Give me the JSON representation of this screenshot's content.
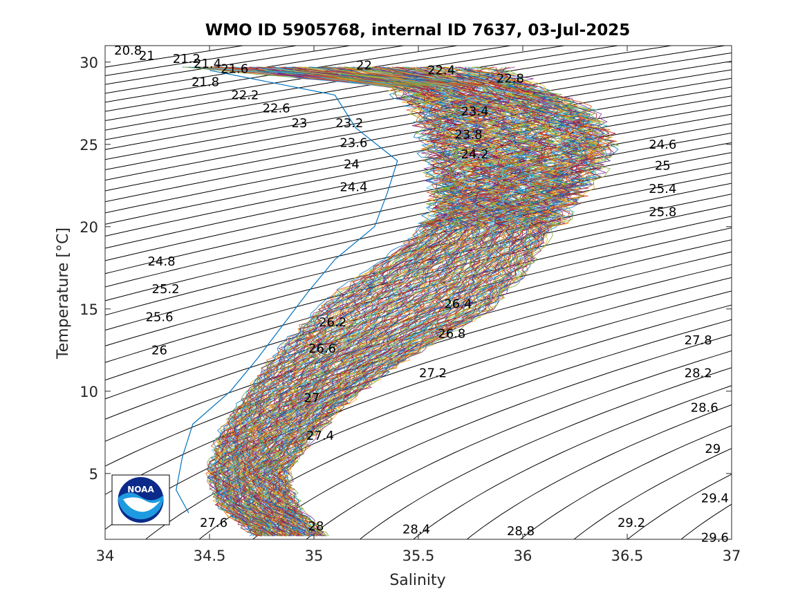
{
  "chart_data": {
    "type": "line",
    "title": "WMO ID 5905768, internal ID 7637, 03-Jul-2025",
    "xlabel": "Salinity",
    "ylabel": "Temperature [°C]",
    "xlim": [
      34,
      37
    ],
    "ylim": [
      1,
      31
    ],
    "xticks": [
      "34",
      "34.5",
      "35",
      "35.5",
      "36",
      "36.5",
      "37"
    ],
    "yticks": [
      "5",
      "10",
      "15",
      "20",
      "25",
      "30"
    ],
    "grid": false,
    "isopycnal_labels": [
      {
        "text": "20.8",
        "s": 34.11,
        "t": 30.7
      },
      {
        "text": "21",
        "s": 34.2,
        "t": 30.4
      },
      {
        "text": "21.2",
        "s": 34.39,
        "t": 30.2
      },
      {
        "text": "21.4",
        "s": 34.49,
        "t": 29.9
      },
      {
        "text": "21.6",
        "s": 34.62,
        "t": 29.6
      },
      {
        "text": "22",
        "s": 35.24,
        "t": 29.8
      },
      {
        "text": "22.4",
        "s": 35.61,
        "t": 29.5
      },
      {
        "text": "22.8",
        "s": 35.94,
        "t": 29.0
      },
      {
        "text": "21.8",
        "s": 34.48,
        "t": 28.8
      },
      {
        "text": "22.2",
        "s": 34.67,
        "t": 28.0
      },
      {
        "text": "22.6",
        "s": 34.82,
        "t": 27.2
      },
      {
        "text": "23",
        "s": 34.93,
        "t": 26.3
      },
      {
        "text": "23.2",
        "s": 35.17,
        "t": 26.3
      },
      {
        "text": "23.4",
        "s": 35.77,
        "t": 27.0
      },
      {
        "text": "23.8",
        "s": 35.74,
        "t": 25.6
      },
      {
        "text": "23.6",
        "s": 35.19,
        "t": 25.1
      },
      {
        "text": "24.2",
        "s": 35.77,
        "t": 24.4
      },
      {
        "text": "24",
        "s": 35.18,
        "t": 23.8
      },
      {
        "text": "24.4",
        "s": 35.19,
        "t": 22.4
      },
      {
        "text": "24.6",
        "s": 36.67,
        "t": 25.0
      },
      {
        "text": "25",
        "s": 36.67,
        "t": 23.7
      },
      {
        "text": "25.4",
        "s": 36.67,
        "t": 22.3
      },
      {
        "text": "25.8",
        "s": 36.67,
        "t": 20.9
      },
      {
        "text": "24.8",
        "s": 34.27,
        "t": 17.9
      },
      {
        "text": "25.2",
        "s": 34.29,
        "t": 16.2
      },
      {
        "text": "25.6",
        "s": 34.26,
        "t": 14.5
      },
      {
        "text": "26",
        "s": 34.26,
        "t": 12.5
      },
      {
        "text": "26.4",
        "s": 35.69,
        "t": 15.3
      },
      {
        "text": "26.2",
        "s": 35.09,
        "t": 14.2
      },
      {
        "text": "26.8",
        "s": 35.66,
        "t": 13.5
      },
      {
        "text": "26.6",
        "s": 35.04,
        "t": 12.6
      },
      {
        "text": "27.2",
        "s": 35.57,
        "t": 11.1
      },
      {
        "text": "27",
        "s": 34.99,
        "t": 9.6
      },
      {
        "text": "27.4",
        "s": 35.03,
        "t": 7.3
      },
      {
        "text": "27.8",
        "s": 36.84,
        "t": 13.1
      },
      {
        "text": "28.2",
        "s": 36.84,
        "t": 11.1
      },
      {
        "text": "28.6",
        "s": 36.87,
        "t": 9.0
      },
      {
        "text": "29",
        "s": 36.91,
        "t": 6.5
      },
      {
        "text": "29.4",
        "s": 36.92,
        "t": 3.5
      },
      {
        "text": "29.2",
        "s": 36.52,
        "t": 2.0
      },
      {
        "text": "29.6",
        "s": 36.92,
        "t": 1.1
      },
      {
        "text": "27.6",
        "s": 34.52,
        "t": 2.0
      },
      {
        "text": "28",
        "s": 35.01,
        "t": 1.8
      },
      {
        "text": "28.4",
        "s": 35.49,
        "t": 1.6
      },
      {
        "text": "28.8",
        "s": 35.99,
        "t": 1.5
      }
    ],
    "profile_envelope": {
      "temperature": [
        1.2,
        3,
        5,
        7,
        9,
        11,
        13,
        15,
        17,
        19,
        21,
        23,
        25,
        27,
        28.5,
        29.7
      ],
      "salinity_min": [
        34.72,
        34.55,
        34.49,
        34.54,
        34.63,
        34.74,
        34.87,
        35.02,
        35.22,
        35.45,
        35.6,
        35.58,
        35.55,
        35.5,
        35.4,
        34.4
      ],
      "salinity_max": [
        35.05,
        34.92,
        34.87,
        34.98,
        35.13,
        35.33,
        35.58,
        35.85,
        36.0,
        36.1,
        36.2,
        36.32,
        36.43,
        36.33,
        36.05,
        35.9
      ],
      "count": 180
    },
    "outlier_profile": {
      "temperature": [
        2.6,
        4,
        6,
        8,
        10,
        12,
        14,
        16,
        18,
        20,
        22,
        24,
        26,
        28,
        29.5
      ],
      "salinity": [
        34.4,
        34.34,
        34.37,
        34.42,
        34.6,
        34.73,
        34.85,
        34.97,
        35.1,
        35.29,
        35.35,
        35.4,
        35.2,
        35.1,
        34.5
      ]
    }
  },
  "logo": {
    "name": "noaa-logo",
    "text": "NOAA"
  }
}
